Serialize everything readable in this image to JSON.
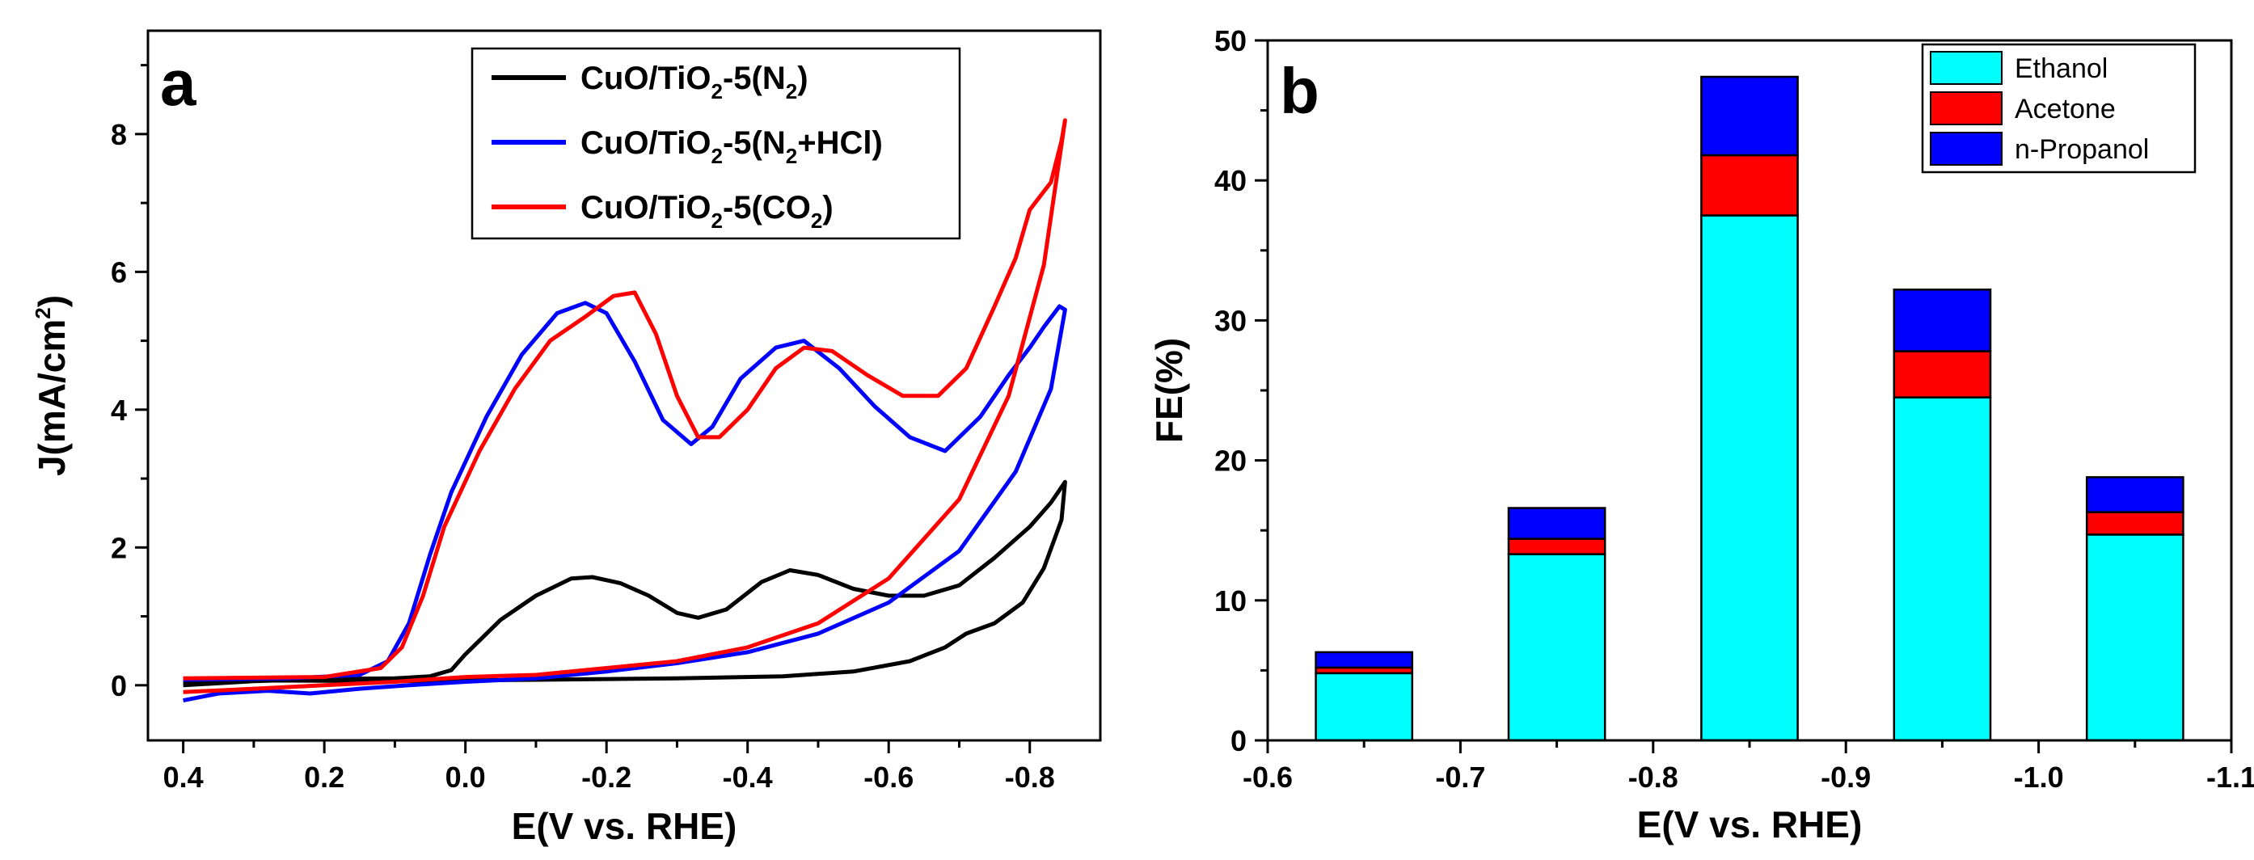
{
  "chart_data": [
    {
      "panel": "a",
      "type": "line",
      "xlabel": "E(V vs. RHE)",
      "ylabel": {
        "main": "J(mA/cm",
        "sup": "2",
        "end": ")"
      },
      "xlim": [
        0.45,
        -0.9
      ],
      "ylim": [
        -0.8,
        9.5
      ],
      "x_ticks": [
        {
          "v": 0.4,
          "label": "0.4"
        },
        {
          "v": 0.2,
          "label": "0.2"
        },
        {
          "v": 0.0,
          "label": "0.0"
        },
        {
          "v": -0.2,
          "label": "-0.2"
        },
        {
          "v": -0.4,
          "label": "-0.4"
        },
        {
          "v": -0.6,
          "label": "-0.6"
        },
        {
          "v": -0.8,
          "label": "-0.8"
        }
      ],
      "y_ticks": [
        {
          "v": 0,
          "label": "0"
        },
        {
          "v": 2,
          "label": "2"
        },
        {
          "v": 4,
          "label": "4"
        },
        {
          "v": 6,
          "label": "6"
        },
        {
          "v": 8,
          "label": "8"
        }
      ],
      "series": [
        {
          "key": "n2",
          "legend": {
            "pre": "CuO/TiO",
            "sub": "2",
            "mid": "-5(N",
            "sub2": "2",
            "post": ")"
          },
          "color": "#000000",
          "points": [
            [
              0.4,
              0.0
            ],
            [
              0.3,
              0.06
            ],
            [
              0.2,
              0.09
            ],
            [
              0.1,
              0.1
            ],
            [
              0.05,
              0.13
            ],
            [
              0.02,
              0.22
            ],
            [
              0.0,
              0.45
            ],
            [
              -0.05,
              0.95
            ],
            [
              -0.1,
              1.3
            ],
            [
              -0.15,
              1.55
            ],
            [
              -0.18,
              1.57
            ],
            [
              -0.22,
              1.48
            ],
            [
              -0.26,
              1.3
            ],
            [
              -0.3,
              1.05
            ],
            [
              -0.33,
              0.98
            ],
            [
              -0.37,
              1.1
            ],
            [
              -0.42,
              1.5
            ],
            [
              -0.46,
              1.67
            ],
            [
              -0.5,
              1.6
            ],
            [
              -0.55,
              1.4
            ],
            [
              -0.6,
              1.3
            ],
            [
              -0.65,
              1.3
            ],
            [
              -0.7,
              1.45
            ],
            [
              -0.75,
              1.85
            ],
            [
              -0.8,
              2.3
            ],
            [
              -0.83,
              2.65
            ],
            [
              -0.85,
              2.95
            ],
            [
              -0.845,
              2.4
            ],
            [
              -0.82,
              1.7
            ],
            [
              -0.79,
              1.2
            ],
            [
              -0.75,
              0.9
            ],
            [
              -0.71,
              0.75
            ],
            [
              -0.68,
              0.55
            ],
            [
              -0.63,
              0.35
            ],
            [
              -0.55,
              0.2
            ],
            [
              -0.45,
              0.13
            ],
            [
              -0.3,
              0.1
            ],
            [
              -0.1,
              0.08
            ],
            [
              0.1,
              0.06
            ],
            [
              0.3,
              0.07
            ],
            [
              0.4,
              0.05
            ]
          ]
        },
        {
          "key": "n2hcl",
          "legend": {
            "pre": "CuO/TiO",
            "sub": "2",
            "mid": "-5(N",
            "sub2": "2",
            "post": "+HCl)"
          },
          "color": "#0000ff",
          "points": [
            [
              0.4,
              -0.22
            ],
            [
              0.35,
              -0.12
            ],
            [
              0.28,
              -0.08
            ],
            [
              0.22,
              -0.12
            ],
            [
              0.15,
              -0.05
            ],
            [
              0.08,
              0.0
            ],
            [
              0.0,
              0.05
            ],
            [
              -0.1,
              0.1
            ],
            [
              -0.2,
              0.2
            ],
            [
              -0.3,
              0.32
            ],
            [
              -0.4,
              0.48
            ],
            [
              -0.5,
              0.75
            ],
            [
              -0.6,
              1.2
            ],
            [
              -0.7,
              1.95
            ],
            [
              -0.78,
              3.1
            ],
            [
              -0.83,
              4.3
            ],
            [
              -0.85,
              5.45
            ],
            [
              -0.842,
              5.5
            ],
            [
              -0.82,
              5.2
            ],
            [
              -0.8,
              4.9
            ],
            [
              -0.77,
              4.5
            ],
            [
              -0.73,
              3.9
            ],
            [
              -0.68,
              3.4
            ],
            [
              -0.63,
              3.6
            ],
            [
              -0.58,
              4.05
            ],
            [
              -0.53,
              4.6
            ],
            [
              -0.48,
              5.0
            ],
            [
              -0.44,
              4.9
            ],
            [
              -0.39,
              4.45
            ],
            [
              -0.35,
              3.75
            ],
            [
              -0.32,
              3.5
            ],
            [
              -0.28,
              3.85
            ],
            [
              -0.24,
              4.7
            ],
            [
              -0.2,
              5.4
            ],
            [
              -0.17,
              5.55
            ],
            [
              -0.13,
              5.4
            ],
            [
              -0.08,
              4.8
            ],
            [
              -0.03,
              3.9
            ],
            [
              0.02,
              2.8
            ],
            [
              0.05,
              1.9
            ],
            [
              0.08,
              0.9
            ],
            [
              0.11,
              0.35
            ],
            [
              0.15,
              0.15
            ],
            [
              0.25,
              0.1
            ],
            [
              0.4,
              0.08
            ]
          ]
        },
        {
          "key": "co2",
          "legend": {
            "pre": "CuO/TiO",
            "sub": "2",
            "mid": "-5(CO",
            "sub2": "2",
            "post": ")"
          },
          "color": "#ff0000",
          "points": [
            [
              0.4,
              -0.1
            ],
            [
              0.3,
              -0.05
            ],
            [
              0.2,
              0.0
            ],
            [
              0.1,
              0.05
            ],
            [
              0.0,
              0.12
            ],
            [
              -0.1,
              0.15
            ],
            [
              -0.2,
              0.25
            ],
            [
              -0.3,
              0.35
            ],
            [
              -0.4,
              0.55
            ],
            [
              -0.5,
              0.9
            ],
            [
              -0.6,
              1.55
            ],
            [
              -0.7,
              2.7
            ],
            [
              -0.77,
              4.2
            ],
            [
              -0.82,
              6.1
            ],
            [
              -0.85,
              8.2
            ],
            [
              -0.845,
              7.9
            ],
            [
              -0.83,
              7.3
            ],
            [
              -0.8,
              6.9
            ],
            [
              -0.78,
              6.2
            ],
            [
              -0.75,
              5.5
            ],
            [
              -0.71,
              4.6
            ],
            [
              -0.67,
              4.2
            ],
            [
              -0.62,
              4.2
            ],
            [
              -0.57,
              4.5
            ],
            [
              -0.52,
              4.85
            ],
            [
              -0.48,
              4.9
            ],
            [
              -0.44,
              4.6
            ],
            [
              -0.4,
              4.0
            ],
            [
              -0.36,
              3.6
            ],
            [
              -0.33,
              3.6
            ],
            [
              -0.3,
              4.2
            ],
            [
              -0.27,
              5.1
            ],
            [
              -0.24,
              5.7
            ],
            [
              -0.21,
              5.65
            ],
            [
              -0.17,
              5.35
            ],
            [
              -0.12,
              5.0
            ],
            [
              -0.07,
              4.3
            ],
            [
              -0.02,
              3.4
            ],
            [
              0.03,
              2.3
            ],
            [
              0.06,
              1.3
            ],
            [
              0.09,
              0.55
            ],
            [
              0.12,
              0.25
            ],
            [
              0.2,
              0.12
            ],
            [
              0.4,
              0.1
            ]
          ]
        }
      ],
      "legend_position": "top-right"
    },
    {
      "panel": "b",
      "type": "bar",
      "stacked": true,
      "xlabel": "E(V vs. RHE)",
      "ylabel": "FE(%)",
      "xlim": [
        -0.6,
        -1.1
      ],
      "ylim": [
        0,
        50
      ],
      "x_ticks": [
        {
          "v": -0.6,
          "label": "-0.6"
        },
        {
          "v": -0.7,
          "label": "-0.7"
        },
        {
          "v": -0.8,
          "label": "-0.8"
        },
        {
          "v": -0.9,
          "label": "-0.9"
        },
        {
          "v": -1.0,
          "label": "-1.0"
        },
        {
          "v": -1.1,
          "label": "-1.1"
        }
      ],
      "y_ticks": [
        {
          "v": 0,
          "label": "0"
        },
        {
          "v": 10,
          "label": "10"
        },
        {
          "v": 20,
          "label": "20"
        },
        {
          "v": 30,
          "label": "30"
        },
        {
          "v": 40,
          "label": "40"
        },
        {
          "v": 50,
          "label": "50"
        }
      ],
      "bar_width": 0.05,
      "x": [
        -0.65,
        -0.75,
        -0.85,
        -0.95,
        -1.05
      ],
      "series": [
        {
          "name": "Ethanol",
          "color": "#00ffff",
          "values": [
            4.8,
            13.3,
            37.5,
            24.5,
            14.7
          ]
        },
        {
          "name": "Acetone",
          "color": "#ff0000",
          "values": [
            0.4,
            1.1,
            4.3,
            3.3,
            1.6
          ]
        },
        {
          "name": "n-Propanol",
          "color": "#0000ff",
          "values": [
            1.1,
            2.2,
            5.6,
            4.4,
            2.5
          ]
        }
      ],
      "legend_position": "top-right"
    }
  ],
  "panel_labels": {
    "a": "a",
    "b": "b"
  }
}
